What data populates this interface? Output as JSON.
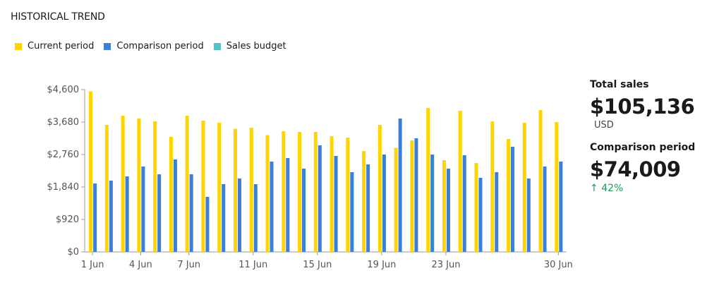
{
  "header": {
    "title": "HISTORICAL TREND"
  },
  "legend": [
    {
      "label": "Current period",
      "color": "#FFD500"
    },
    {
      "label": "Comparison period",
      "color": "#3A7FDB"
    },
    {
      "label": "Sales budget",
      "color": "#4DC3C6"
    }
  ],
  "summary": {
    "total_label": "Total sales",
    "total_value": "$105,136",
    "currency": "USD",
    "comparison_label": "Comparison period",
    "comparison_value": "$74,009",
    "change_icon": "arrow-up-icon",
    "change_arrow": "↑",
    "change_text": "42%",
    "change_color": "#1a9a56"
  },
  "chart_data": {
    "type": "bar",
    "categories": [
      "1 Jun",
      "2 Jun",
      "3 Jun",
      "4 Jun",
      "5 Jun",
      "6 Jun",
      "7 Jun",
      "8 Jun",
      "9 Jun",
      "10 Jun",
      "11 Jun",
      "12 Jun",
      "13 Jun",
      "14 Jun",
      "15 Jun",
      "16 Jun",
      "17 Jun",
      "18 Jun",
      "19 Jun",
      "20 Jun",
      "21 Jun",
      "22 Jun",
      "23 Jun",
      "24 Jun",
      "25 Jun",
      "26 Jun",
      "27 Jun",
      "28 Jun",
      "29 Jun",
      "30 Jun"
    ],
    "x_tick_labels": [
      "1 Jun",
      "4 Jun",
      "7 Jun",
      "11 Jun",
      "15 Jun",
      "19 Jun",
      "23 Jun",
      "30 Jun"
    ],
    "x_tick_indices": [
      0,
      3,
      6,
      10,
      14,
      18,
      22,
      29
    ],
    "series": [
      {
        "name": "Current period",
        "color": "#FFD500",
        "values": [
          4550,
          3600,
          3860,
          3780,
          3700,
          3260,
          3860,
          3720,
          3660,
          3490,
          3520,
          3310,
          3420,
          3400,
          3400,
          3280,
          3240,
          2860,
          3600,
          2950,
          3160,
          4080,
          2600,
          4000,
          2520,
          3700,
          3200,
          3660,
          4020,
          3680
        ]
      },
      {
        "name": "Comparison period",
        "color": "#3A7FDB",
        "values": [
          1940,
          2020,
          2140,
          2420,
          2200,
          2620,
          2200,
          1560,
          1920,
          2080,
          1920,
          2560,
          2660,
          2360,
          3020,
          2720,
          2260,
          2480,
          2760,
          3780,
          3220,
          2760,
          2360,
          2740,
          2100,
          2260,
          2980,
          2080,
          2420,
          2560
        ]
      }
    ],
    "y_ticks": [
      "$0",
      "$920",
      "$1,840",
      "$2,760",
      "$3,680",
      "$4,600"
    ],
    "y_tick_values": [
      0,
      920,
      1840,
      2760,
      3680,
      4600
    ],
    "ylim": [
      0,
      4600
    ],
    "grid": false,
    "legend_position": "top-left"
  }
}
